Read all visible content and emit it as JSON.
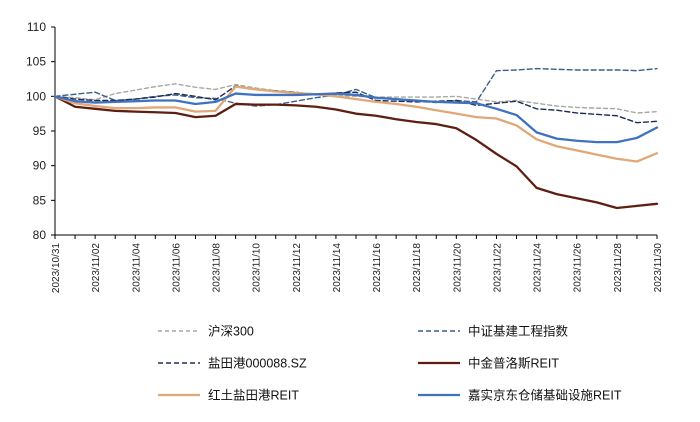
{
  "chart_data": {
    "type": "line",
    "title": "",
    "xlabel": "",
    "ylabel": "",
    "ylim": [
      80,
      110
    ],
    "yticks": [
      80,
      85,
      90,
      95,
      100,
      105,
      110
    ],
    "grid": false,
    "legend_position": "bottom",
    "x": [
      "2023/10/31",
      "2023/11/01",
      "2023/11/02",
      "2023/11/03",
      "2023/11/04",
      "2023/11/05",
      "2023/11/06",
      "2023/11/07",
      "2023/11/08",
      "2023/11/09",
      "2023/11/10",
      "2023/11/11",
      "2023/11/12",
      "2023/11/13",
      "2023/11/14",
      "2023/11/15",
      "2023/11/16",
      "2023/11/17",
      "2023/11/18",
      "2023/11/19",
      "2023/11/20",
      "2023/11/21",
      "2023/11/22",
      "2023/11/23",
      "2023/11/24",
      "2023/11/25",
      "2023/11/26",
      "2023/11/27",
      "2023/11/28",
      "2023/11/29",
      "2023/11/30"
    ],
    "x_tick_labels": [
      "2023/10/31",
      "2023/11/02",
      "2023/11/04",
      "2023/11/06",
      "2023/11/08",
      "2023/11/10",
      "2023/11/12",
      "2023/11/14",
      "2023/11/16",
      "2023/11/18",
      "2023/11/20",
      "2023/11/22",
      "2023/11/24",
      "2023/11/26",
      "2023/11/28",
      "2023/11/30"
    ],
    "series": [
      {
        "name": "沪深300",
        "color": "#a8a8a0",
        "dash": "4,3",
        "width": 1.4,
        "values": [
          100,
          99.8,
          99.5,
          100.4,
          100.9,
          101.4,
          101.8,
          101.3,
          101.0,
          101.7,
          101.2,
          100.8,
          100.5,
          100.3,
          100.1,
          100.0,
          99.9,
          99.9,
          99.9,
          99.9,
          100.0,
          99.6,
          99.2,
          99.4,
          99.0,
          98.6,
          98.4,
          98.3,
          98.2,
          97.6,
          97.8
        ]
      },
      {
        "name": "中证基建工程指数",
        "color": "#3d5f8a",
        "dash": "5,3",
        "width": 1.4,
        "values": [
          100,
          100.3,
          100.6,
          99.4,
          99.6,
          100.0,
          100.2,
          99.8,
          99.7,
          99.0,
          98.6,
          98.8,
          99.3,
          99.8,
          100.2,
          101.0,
          99.8,
          99.6,
          99.3,
          99.1,
          99.4,
          99.2,
          103.7,
          103.8,
          104.0,
          103.9,
          103.8,
          103.8,
          103.8,
          103.7,
          104.0
        ]
      },
      {
        "name": "盐田港000088.SZ",
        "color": "#1e2d55",
        "dash": "5,3",
        "width": 1.4,
        "values": [
          100,
          99.6,
          99.4,
          99.4,
          99.6,
          99.9,
          100.4,
          100.0,
          99.5,
          101.5,
          101.0,
          100.8,
          100.6,
          100.2,
          100.5,
          100.6,
          99.4,
          99.3,
          99.2,
          99.3,
          99.4,
          98.7,
          99.0,
          99.3,
          98.2,
          98.0,
          97.6,
          97.4,
          97.2,
          96.2,
          96.4
        ]
      },
      {
        "name": "中金普洛斯REIT",
        "color": "#5e1f12",
        "dash": "",
        "width": 2.3,
        "values": [
          100,
          98.5,
          98.2,
          97.9,
          97.8,
          97.7,
          97.6,
          97.0,
          97.2,
          98.9,
          98.8,
          98.8,
          98.7,
          98.5,
          98.1,
          97.5,
          97.2,
          96.7,
          96.3,
          96.0,
          95.4,
          93.7,
          91.7,
          89.9,
          86.8,
          85.9,
          85.3,
          84.7,
          83.9,
          84.2,
          84.5
        ]
      },
      {
        "name": "红土盐田港REIT",
        "color": "#e0a878",
        "dash": "",
        "width": 2.3,
        "values": [
          100,
          99.0,
          98.6,
          98.3,
          98.3,
          98.4,
          98.4,
          97.8,
          97.9,
          101.4,
          101.0,
          100.7,
          100.5,
          100.3,
          100.0,
          99.6,
          99.2,
          98.9,
          98.5,
          98.0,
          97.5,
          97.0,
          96.8,
          95.8,
          93.8,
          92.8,
          92.2,
          91.6,
          91.0,
          90.6,
          91.8
        ]
      },
      {
        "name": "嘉实京东仓储基础设施REIT",
        "color": "#3f72be",
        "dash": "",
        "width": 2.3,
        "values": [
          100,
          99.3,
          99.1,
          99.2,
          99.3,
          99.4,
          99.4,
          98.9,
          99.2,
          100.4,
          100.2,
          100.2,
          100.2,
          100.3,
          100.4,
          100.2,
          99.8,
          99.6,
          99.4,
          99.2,
          99.1,
          99.0,
          98.2,
          97.3,
          94.8,
          93.9,
          93.6,
          93.4,
          93.4,
          94.0,
          95.5
        ]
      }
    ]
  }
}
